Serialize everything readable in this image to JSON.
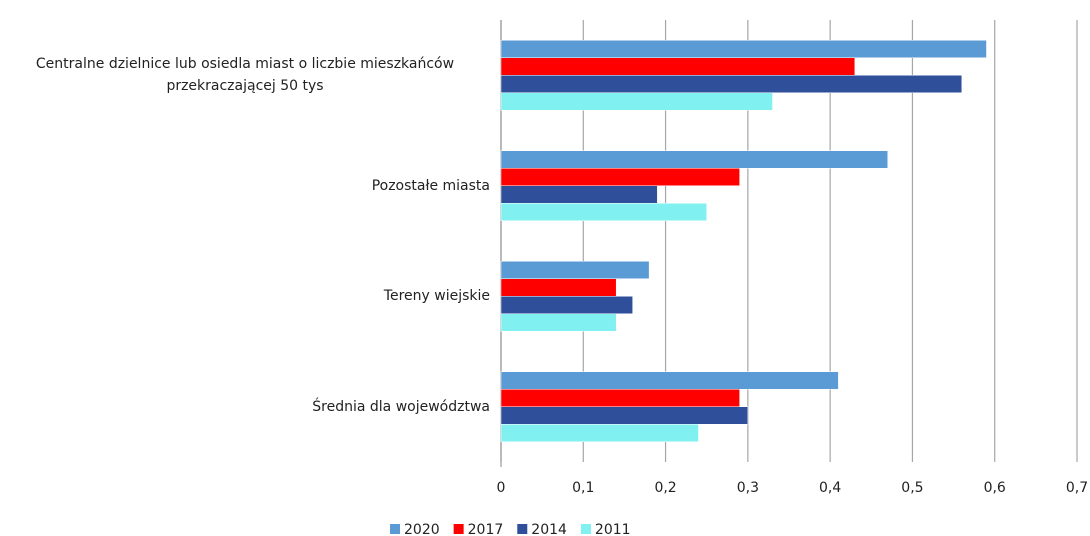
{
  "chart_data": {
    "type": "bar",
    "orientation": "horizontal",
    "categories": [
      "Centralne dzielnice lub osiedla miast o liczbie mieszkańców przekraczającej 50 tys",
      "Pozostałe miasta",
      "Tereny wiejskie",
      "Średnia dla województwa"
    ],
    "series": [
      {
        "name": "2020",
        "color": "#5b9bd5",
        "values": [
          0.59,
          0.47,
          0.18,
          0.41
        ]
      },
      {
        "name": "2017",
        "color": "#ff0000",
        "values": [
          0.43,
          0.29,
          0.14,
          0.29
        ]
      },
      {
        "name": "2014",
        "color": "#2f4f9b",
        "values": [
          0.56,
          0.19,
          0.16,
          0.3
        ]
      },
      {
        "name": "2011",
        "color": "#80f0f0",
        "values": [
          0.33,
          0.25,
          0.14,
          0.24
        ]
      }
    ],
    "xlim": [
      0,
      0.7
    ],
    "xticks": [
      0,
      {
        "value": 0.1,
        "label": "0,1"
      },
      {
        "value": 0.2,
        "label": "0,2"
      },
      {
        "value": 0.3,
        "label": "0,3"
      },
      {
        "value": 0.4,
        "label": "0,4"
      },
      {
        "value": 0.5,
        "label": "0,5"
      },
      {
        "value": 0.6,
        "label": "0,6"
      },
      {
        "value": 0.7,
        "label": "0,7"
      }
    ],
    "grid": true,
    "legend": "bottom"
  }
}
